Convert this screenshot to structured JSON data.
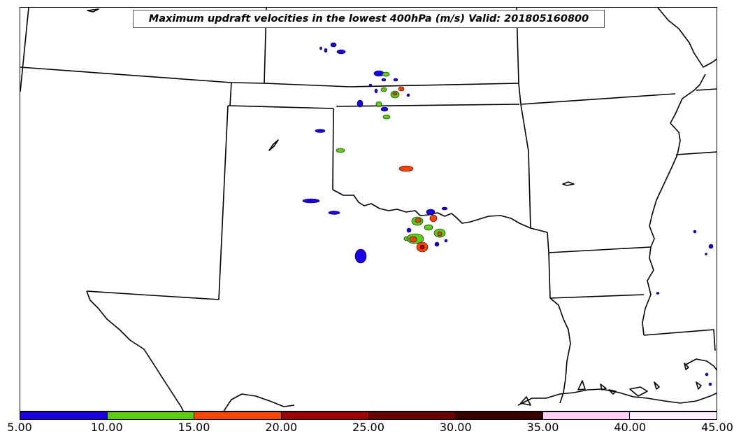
{
  "title": "Maximum updraft velocities in the lowest 400hPa (m/s) Valid: 201805160800",
  "colorbar": {
    "ticks": [
      "5.00",
      "10.00",
      "15.00",
      "20.00",
      "25.00",
      "30.00",
      "35.00",
      "40.00",
      "45.00"
    ],
    "colors": [
      "#1a00e6",
      "#5ccc14",
      "#ff4400",
      "#a00000",
      "#6b0000",
      "#3a0000",
      "#ffd0f4",
      "#ffeefc"
    ]
  }
}
